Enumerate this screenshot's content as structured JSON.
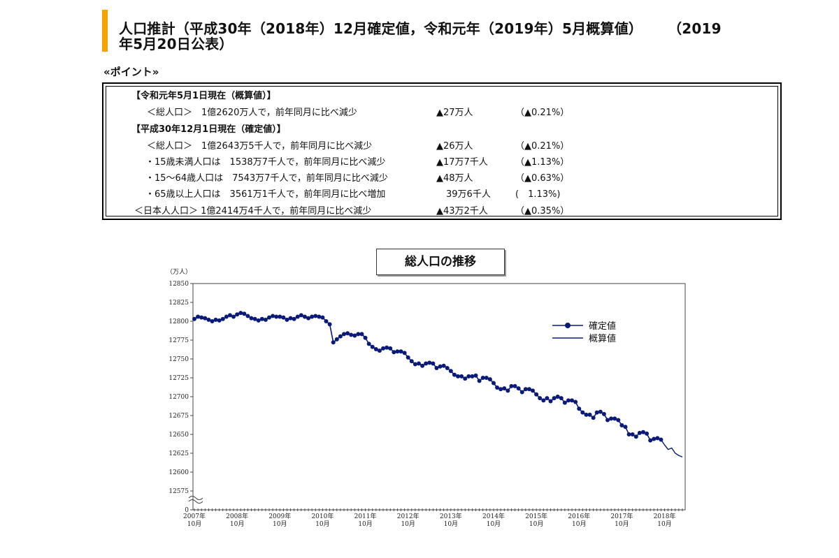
{
  "title": {
    "line1": "人口推計（平成30年（2018年）12月確定値，令和元年（2019年）5月概算値）",
    "line1_tail": "（2019",
    "line2": "年5月20日公表）"
  },
  "point_label": "«ポイント»",
  "points": [
    {
      "head": true,
      "text": "【令和元年5月1日現在（概算値）】"
    },
    {
      "head": false,
      "text": "＜総人口＞　1億2620万人で，前年同月に比べ減少",
      "change": "▲27万人",
      "pct": "（▲0.21%）"
    },
    {
      "head": true,
      "text": "【平成30年12月1日現在（確定値）】"
    },
    {
      "head": false,
      "text": "＜総人口＞　1億2643万5千人で，前年同月に比べ減少",
      "change": "▲26万人",
      "pct": "（▲0.21%）"
    },
    {
      "head": false,
      "text": "・15歳未満人口は　1538万7千人で，前年同月に比べ減少",
      "change": "▲17万7千人",
      "pct": "（▲1.13%）"
    },
    {
      "head": false,
      "text": "・15～64歳人口は　7543万7千人で，前年同月に比べ減少",
      "change": "▲48万人",
      "pct": "（▲0.63%）"
    },
    {
      "head": false,
      "text": "・65歳以上人口は　3561万1千人で，前年同月に比べ増加",
      "change": "39万6千人",
      "pct": "(　1.13%)"
    },
    {
      "head": false,
      "text": "＜日本人人口＞ 1億2414万4千人で，前年同月に比べ減少",
      "change": "▲43万2千人",
      "pct": "（▲0.35%）"
    }
  ],
  "chart_data": {
    "type": "line",
    "title": "総人口の推移",
    "ylabel": "（万人）",
    "ylim": [
      12575,
      12850
    ],
    "yticks": [
      0,
      12575,
      12600,
      12625,
      12650,
      12675,
      12700,
      12725,
      12750,
      12775,
      12800,
      12825,
      12850
    ],
    "y_axis_break": true,
    "x_ticks": [
      {
        "year": "2007年",
        "month": "10月"
      },
      {
        "year": "2008年",
        "month": "10月"
      },
      {
        "year": "2009年",
        "month": "10月"
      },
      {
        "year": "2010年",
        "month": "10月"
      },
      {
        "year": "2011年",
        "month": "10月"
      },
      {
        "year": "2012年",
        "month": "10月"
      },
      {
        "year": "2013年",
        "month": "10月"
      },
      {
        "year": "2014年",
        "month": "10月"
      },
      {
        "year": "2015年",
        "month": "10月"
      },
      {
        "year": "2016年",
        "month": "10月"
      },
      {
        "year": "2017年",
        "month": "10月"
      },
      {
        "year": "2018年",
        "month": "10月"
      }
    ],
    "x_start": "2007-10",
    "series": [
      {
        "name": "確定値",
        "style": "line-with-markers",
        "color": "#0a1a78",
        "values": [
          12803,
          12806,
          12805,
          12804,
          12802,
          12800,
          12802,
          12801,
          12803,
          12806,
          12808,
          12806,
          12809,
          12811,
          12810,
          12807,
          12804,
          12803,
          12801,
          12803,
          12802,
          12805,
          12807,
          12806,
          12806,
          12805,
          12802,
          12804,
          12803,
          12806,
          12808,
          12806,
          12804,
          12806,
          12807,
          12806,
          12805,
          12800,
          12796,
          12772,
          12776,
          12780,
          12783,
          12784,
          12782,
          12781,
          12783,
          12783,
          12778,
          12770,
          12766,
          12763,
          12761,
          12764,
          12765,
          12764,
          12759,
          12760,
          12760,
          12758,
          12752,
          12747,
          12743,
          12744,
          12741,
          12744,
          12745,
          12744,
          12738,
          12740,
          12741,
          12738,
          12734,
          12729,
          12727,
          12727,
          12724,
          12727,
          12727,
          12728,
          12721,
          12725,
          12725,
          12723,
          12718,
          12712,
          12710,
          12711,
          12708,
          12714,
          12714,
          12711,
          12706,
          12710,
          12710,
          12708,
          12703,
          12698,
          12695,
          12698,
          12694,
          12698,
          12700,
          12698,
          12692,
          12695,
          12695,
          12693,
          12684,
          12679,
          12676,
          12676,
          12672,
          12679,
          12680,
          12677,
          12669,
          12671,
          12671,
          12669,
          12662,
          12660,
          12650,
          12650,
          12647,
          12652,
          12653,
          12651,
          12642,
          12644,
          12645,
          12643
        ]
      },
      {
        "name": "概算値",
        "style": "line",
        "color": "#0a1a78",
        "values": [
          12643,
          12636,
          12630,
          12632,
          12625,
          12622,
          12620
        ]
      }
    ],
    "legend": {
      "position": "top-right"
    },
    "grid": false,
    "note": ""
  },
  "colors": {
    "title_accent": "#f5a100",
    "series": "#0a1a78"
  }
}
